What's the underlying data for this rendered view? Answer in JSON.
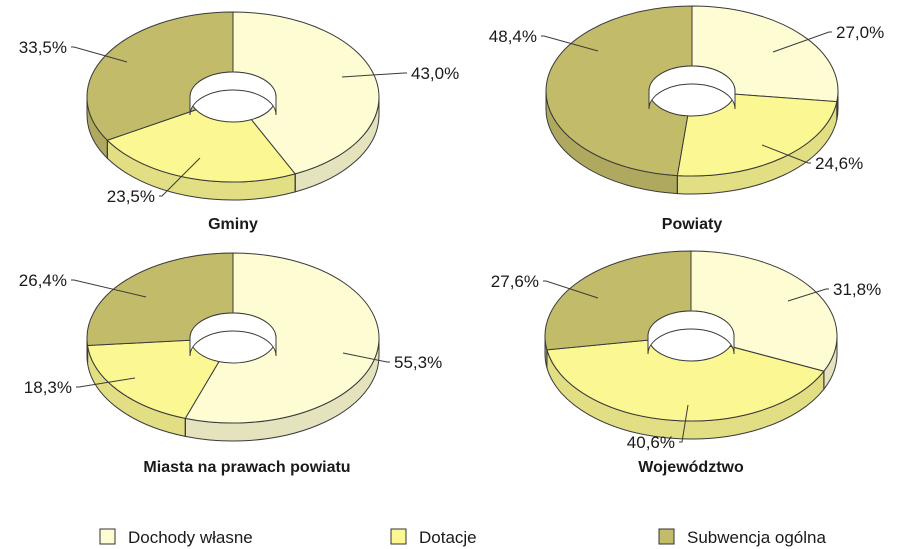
{
  "chart_data": {
    "type": "pie",
    "variant": "3d-donut",
    "series_names": [
      "Dochody własne",
      "Dotacje",
      "Subwencja ogólna"
    ],
    "colors": {
      "Dochody własne": "#fefcd2",
      "Dotacje": "#fbf793",
      "Subwencja ogólna": "#c2bc6a"
    },
    "legend_position": "bottom",
    "charts": [
      {
        "title": "Gminy",
        "values": [
          43.0,
          23.5,
          33.5
        ],
        "labels": [
          "43,0%",
          "23,5%",
          "33,5%"
        ]
      },
      {
        "title": "Powiaty",
        "values": [
          27.0,
          24.6,
          48.4
        ],
        "labels": [
          "27,0%",
          "24,6%",
          "48,4%"
        ]
      },
      {
        "title": "Miasta na prawach powiatu",
        "values": [
          55.3,
          18.3,
          26.4
        ],
        "labels": [
          "55,3%",
          "18,3%",
          "26,4%"
        ]
      },
      {
        "title": "Województwo",
        "values": [
          31.8,
          40.6,
          27.6
        ],
        "labels": [
          "31,8%",
          "40,6%",
          "27,6%"
        ]
      }
    ]
  }
}
